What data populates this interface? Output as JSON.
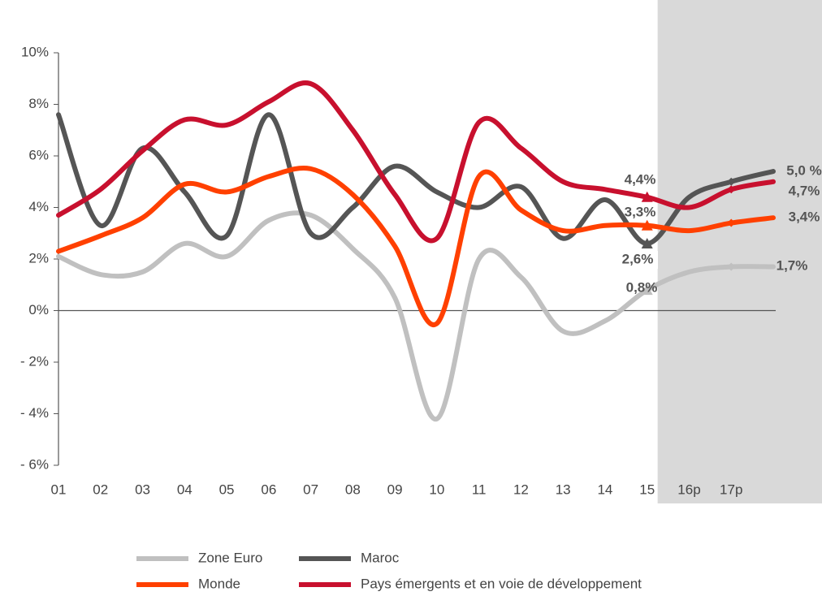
{
  "chart_data": {
    "type": "line",
    "categories": [
      "01",
      "02",
      "03",
      "04",
      "05",
      "06",
      "07",
      "08",
      "09",
      "10",
      "11",
      "12",
      "13",
      "14",
      "15",
      "16p",
      "17p",
      null
    ],
    "series": [
      {
        "name": "Zone Euro",
        "color": "#c0c0c0",
        "values": [
          2.1,
          1.4,
          1.5,
          2.6,
          2.1,
          3.5,
          3.7,
          2.4,
          0.5,
          -4.2,
          2.0,
          1.3,
          -0.8,
          -0.4,
          0.8,
          1.5,
          1.7,
          1.7
        ],
        "value_labels": [
          null,
          null,
          null,
          null,
          null,
          null,
          null,
          null,
          null,
          null,
          null,
          null,
          null,
          null,
          "0,8%",
          null,
          "1,7%",
          null
        ]
      },
      {
        "name": "Maroc",
        "color": "#555555",
        "values": [
          7.6,
          3.3,
          6.3,
          4.6,
          2.9,
          7.6,
          3.0,
          4.0,
          5.6,
          4.6,
          4.0,
          4.8,
          2.8,
          4.3,
          2.6,
          4.4,
          5.0,
          5.4
        ],
        "value_labels": [
          null,
          null,
          null,
          null,
          null,
          null,
          null,
          null,
          null,
          null,
          null,
          null,
          null,
          null,
          "2,6%",
          null,
          "5,0 %",
          null
        ]
      },
      {
        "name": "Monde",
        "color": "#ff4000",
        "values": [
          2.3,
          2.9,
          3.6,
          4.9,
          4.6,
          5.2,
          5.5,
          4.5,
          2.5,
          -0.5,
          5.2,
          3.9,
          3.1,
          3.3,
          3.3,
          3.1,
          3.4,
          3.6
        ],
        "value_labels": [
          null,
          null,
          null,
          null,
          null,
          null,
          null,
          null,
          null,
          null,
          null,
          null,
          null,
          null,
          "3,3%",
          null,
          "3,4%",
          null
        ]
      },
      {
        "name": "Pays émergents et en voie de développement",
        "color": "#c8102e",
        "values": [
          3.7,
          4.7,
          6.2,
          7.4,
          7.2,
          8.1,
          8.8,
          7.0,
          4.5,
          2.8,
          7.3,
          6.3,
          5.0,
          4.7,
          4.4,
          4.0,
          4.7,
          5.0
        ],
        "value_labels": [
          null,
          null,
          null,
          null,
          null,
          null,
          null,
          null,
          null,
          null,
          null,
          null,
          null,
          null,
          "4,4%",
          null,
          "4,7%",
          null
        ]
      }
    ],
    "ylim": [
      -6,
      10
    ],
    "yticks": [
      {
        "value": -6,
        "label": "- 6%"
      },
      {
        "value": -4,
        "label": "- 4%"
      },
      {
        "value": -2,
        "label": "- 2%"
      },
      {
        "value": 0,
        "label": "0%"
      },
      {
        "value": 2,
        "label": "2%"
      },
      {
        "value": 4,
        "label": "4%"
      },
      {
        "value": 6,
        "label": "6%"
      },
      {
        "value": 8,
        "label": "8%"
      },
      {
        "value": 10,
        "label": "10%"
      }
    ],
    "shaded_from": "16p"
  }
}
